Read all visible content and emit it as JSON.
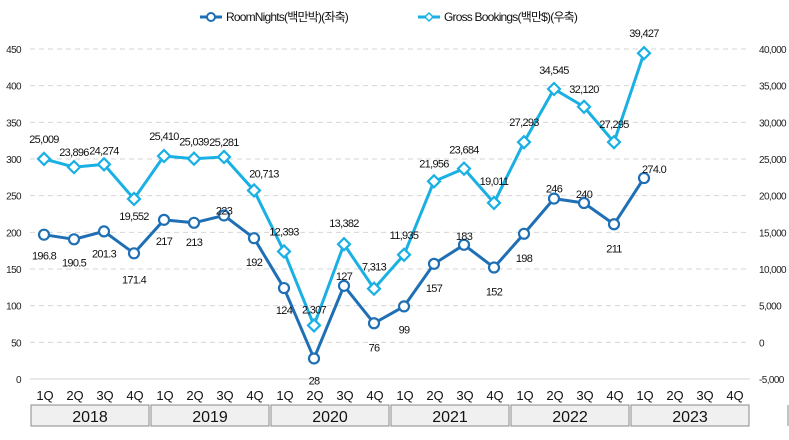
{
  "chart_data": {
    "type": "line",
    "title": "",
    "legend_position": "top",
    "grid": true,
    "years": [
      "2018",
      "2019",
      "2020",
      "2021",
      "2022",
      "2023"
    ],
    "quarters": [
      "1Q",
      "2Q",
      "3Q",
      "4Q"
    ],
    "categories": [
      "2018 1Q",
      "2018 2Q",
      "2018 3Q",
      "2018 4Q",
      "2019 1Q",
      "2019 2Q",
      "2019 3Q",
      "2019 4Q",
      "2020 1Q",
      "2020 2Q",
      "2020 3Q",
      "2020 4Q",
      "2021 1Q",
      "2021 2Q",
      "2021 3Q",
      "2021 4Q",
      "2022 1Q",
      "2022 2Q",
      "2022 3Q",
      "2022 4Q",
      "2023 1Q",
      "2023 2Q",
      "2023 3Q",
      "2023 4Q"
    ],
    "left_axis": {
      "label": "",
      "ylim": [
        0,
        450
      ],
      "ticks": [
        "0",
        "50",
        "100",
        "150",
        "200",
        "250",
        "300",
        "350",
        "400",
        "450"
      ],
      "tick_values": [
        0,
        50,
        100,
        150,
        200,
        250,
        300,
        350,
        400,
        450
      ]
    },
    "right_axis": {
      "label": "",
      "ylim": [
        -5000,
        40000
      ],
      "ticks": [
        "-5,000",
        "0",
        "5,000",
        "10,000",
        "15,000",
        "20,000",
        "25,000",
        "30,000",
        "35,000",
        "40,000"
      ],
      "tick_values": [
        -5000,
        0,
        5000,
        10000,
        15000,
        20000,
        25000,
        30000,
        35000,
        40000
      ]
    },
    "series": [
      {
        "name": "RoomNights(백만박)(좌축)",
        "axis": "left",
        "color": "#1f6fb5",
        "marker": "circle",
        "values": [
          196.8,
          190.5,
          201.3,
          171.4,
          217,
          213,
          223,
          192,
          124,
          28,
          127,
          76,
          99,
          157,
          183,
          152,
          198,
          246,
          240,
          211,
          274.0,
          null,
          null,
          null
        ],
        "labels": [
          "196.8",
          "190.5",
          "201.3",
          "171.4",
          "217",
          "213",
          "223",
          "192",
          "124",
          "28",
          "127",
          "76",
          "99",
          "157",
          "183",
          "152",
          "198",
          "246",
          "240",
          "211",
          "274.0",
          null,
          null,
          null
        ],
        "label_pos": [
          "below",
          "below",
          "above-below",
          "below",
          "below",
          "below",
          "above",
          "below",
          "below",
          "below",
          "below",
          "below",
          "below",
          "below",
          "below",
          "below",
          "below",
          "below",
          "below",
          "below",
          "below",
          null,
          null,
          null
        ]
      },
      {
        "name": "Gross Bookings(백만$)(우축)",
        "axis": "right",
        "color": "#1ab0e3",
        "marker": "diamond",
        "values": [
          25009,
          23896,
          24274,
          19552,
          25410,
          25039,
          25281,
          20713,
          12393,
          2307,
          13382,
          7313,
          11935,
          21956,
          23684,
          19011,
          27293,
          34545,
          32120,
          27295,
          39427,
          null,
          null,
          null
        ],
        "labels": [
          "25,009",
          "23,896",
          "24,274",
          "19,552",
          "25,410",
          "25,039",
          "25,281",
          "20,713",
          "12,393",
          "2,307",
          "13,382",
          "7,313",
          "11,935",
          "21,956",
          "23,684",
          "19,011",
          "27,293",
          "34,545",
          "32,120",
          "27,295",
          "39,427",
          null,
          null,
          null
        ]
      }
    ]
  }
}
